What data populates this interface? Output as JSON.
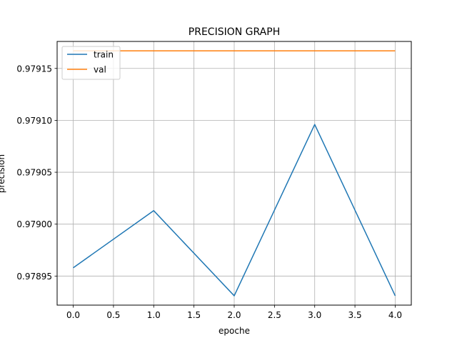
{
  "chart_data": {
    "type": "line",
    "title": "PRECISION GRAPH",
    "xlabel": "epoche",
    "ylabel": "precision",
    "x": [
      0,
      1,
      2,
      3,
      4
    ],
    "xlim": [
      -0.2,
      4.2
    ],
    "ylim": [
      0.978922,
      0.979176
    ],
    "x_ticks": [
      "0.0",
      "0.5",
      "1.0",
      "1.5",
      "2.0",
      "2.5",
      "3.0",
      "3.5",
      "4.0"
    ],
    "y_ticks": [
      "0.97895",
      "0.97900",
      "0.97905",
      "0.97910",
      "0.97915"
    ],
    "grid": true,
    "legend_position": "top-left",
    "series": [
      {
        "name": "train",
        "color": "#1f77b4",
        "values": [
          0.978958,
          0.979013,
          0.978931,
          0.979096,
          0.978931
        ]
      },
      {
        "name": "val",
        "color": "#ff7f0e",
        "values": [
          0.979167,
          0.979167,
          0.979167,
          0.979167,
          0.979167
        ]
      }
    ]
  }
}
